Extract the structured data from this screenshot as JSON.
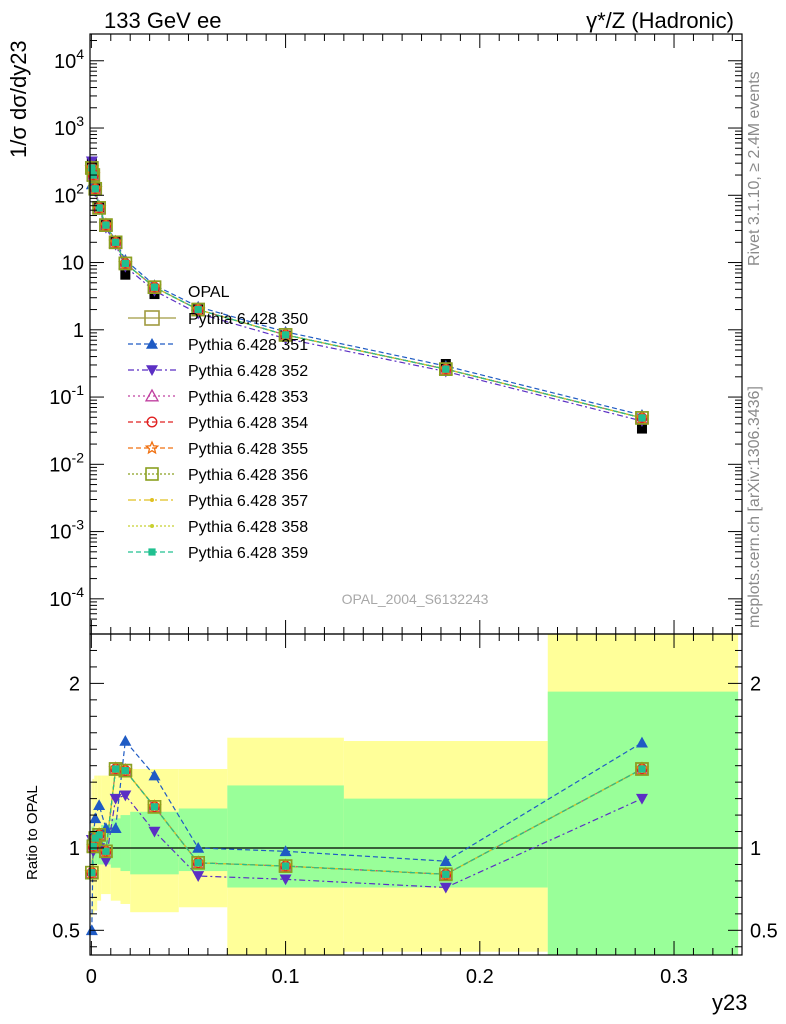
{
  "header": {
    "left": "133 GeV ee",
    "right": "γ*/Z (Hadronic)"
  },
  "side_text": {
    "rivet": "Rivet 3.1.10, ≥ 2.4M events",
    "source": "mcplots.cern.ch [arXiv:1306.3436]"
  },
  "watermark": "OPAL_2004_S6132243",
  "colors": {
    "data": "#000000",
    "band_inner": "#99ff99",
    "band_outer": "#ffff99",
    "s350": "#a09a40",
    "s351": "#1f5bc4",
    "s352": "#5b2fc4",
    "s353": "#c040a0",
    "s354": "#e02020",
    "s355": "#f07010",
    "s356": "#8aa020",
    "s357": "#e0c020",
    "s358": "#c8d030",
    "s359": "#20c090"
  },
  "chart_data": [
    {
      "type": "scatter",
      "title": "",
      "xlabel": "y23",
      "ylabel": "1/σ dσ/dy23",
      "ylog": true,
      "ylim": [
        3e-05,
        25000
      ],
      "xlim": [
        -0.0007,
        0.335
      ],
      "y_tick_labels": [
        "10^-4",
        "10^-3",
        "10^-2",
        "10^-1",
        "1",
        "10",
        "10^2",
        "10^3",
        "10^4"
      ],
      "x": [
        0.00025,
        0.001,
        0.002,
        0.004,
        0.0075,
        0.0125,
        0.0175,
        0.0325,
        0.055,
        0.1,
        0.1825,
        0.2835
      ],
      "data_name": "OPAL",
      "data": [
        300,
        220,
        130,
        66,
        36,
        21,
        6.6,
        3.4,
        2.0,
        0.82,
        0.31,
        0.034
      ],
      "series": [
        {
          "name": "Pythia 6.428 350",
          "key": "s350",
          "values": [
            255,
            200,
            125,
            65,
            36,
            20,
            9.7,
            4.3,
            2.0,
            0.84,
            0.26,
            0.049
          ]
        },
        {
          "name": "Pythia 6.428 351",
          "key": "s351",
          "values": [
            145,
            205,
            130,
            70,
            37,
            21,
            10.9,
            4.6,
            2.2,
            0.93,
            0.29,
            0.054
          ]
        },
        {
          "name": "Pythia 6.428 352",
          "key": "s352",
          "values": [
            320,
            210,
            115,
            62,
            33,
            18.5,
            8.7,
            3.8,
            1.75,
            0.74,
            0.24,
            0.044
          ]
        },
        {
          "name": "Pythia 6.428 353",
          "key": "s353",
          "values": [
            255,
            200,
            125,
            65,
            36,
            20,
            9.7,
            4.3,
            2.0,
            0.84,
            0.26,
            0.049
          ]
        },
        {
          "name": "Pythia 6.428 354",
          "key": "s354",
          "values": [
            255,
            200,
            125,
            65,
            36,
            20,
            9.7,
            4.3,
            2.0,
            0.84,
            0.26,
            0.049
          ]
        },
        {
          "name": "Pythia 6.428 355",
          "key": "s355",
          "values": [
            255,
            200,
            125,
            65,
            36,
            20,
            9.7,
            4.3,
            2.0,
            0.84,
            0.26,
            0.049
          ]
        },
        {
          "name": "Pythia 6.428 356",
          "key": "s356",
          "values": [
            255,
            200,
            125,
            65,
            36,
            20,
            9.7,
            4.3,
            2.0,
            0.84,
            0.26,
            0.049
          ]
        },
        {
          "name": "Pythia 6.428 357",
          "key": "s357",
          "values": [
            255,
            200,
            125,
            65,
            36,
            20,
            9.7,
            4.3,
            2.0,
            0.84,
            0.26,
            0.049
          ]
        },
        {
          "name": "Pythia 6.428 358",
          "key": "s358",
          "values": [
            255,
            200,
            125,
            65,
            36,
            20,
            9.7,
            4.3,
            2.0,
            0.84,
            0.26,
            0.049
          ]
        },
        {
          "name": "Pythia 6.428 359",
          "key": "s359",
          "values": [
            255,
            200,
            125,
            65,
            36,
            20,
            9.7,
            4.3,
            2.0,
            0.84,
            0.26,
            0.049
          ]
        }
      ]
    },
    {
      "type": "line",
      "title": "",
      "xlabel": "y23",
      "ylabel": "Ratio to OPAL",
      "ylim": [
        0.35,
        2.3
      ],
      "xlim": [
        -0.0007,
        0.335
      ],
      "y_ticks": [
        0.5,
        1,
        2
      ],
      "y_tick_labels": [
        "0.5",
        "1",
        "2"
      ],
      "x_ticks": [
        0,
        0.1,
        0.2,
        0.3
      ],
      "x_tick_labels": [
        "0",
        "0.1",
        "0.2",
        "0.3"
      ],
      "x": [
        0.00025,
        0.001,
        0.002,
        0.004,
        0.0075,
        0.0125,
        0.0175,
        0.0325,
        0.055,
        0.1,
        0.1825,
        0.2835
      ],
      "bands": [
        {
          "x0": 0.0,
          "x1": 0.0005,
          "inner": [
            0.88,
            1.13
          ],
          "outer": [
            0.55,
            1.4
          ]
        },
        {
          "x0": 0.0005,
          "x1": 0.0015,
          "inner": [
            0.88,
            1.13
          ],
          "outer": [
            0.6,
            1.42
          ]
        },
        {
          "x0": 0.0015,
          "x1": 0.003,
          "inner": [
            0.9,
            1.12
          ],
          "outer": [
            0.62,
            1.44
          ]
        },
        {
          "x0": 0.003,
          "x1": 0.005,
          "inner": [
            0.9,
            1.12
          ],
          "outer": [
            0.68,
            1.44
          ]
        },
        {
          "x0": 0.005,
          "x1": 0.01,
          "inner": [
            0.9,
            1.14
          ],
          "outer": [
            0.72,
            1.44
          ]
        },
        {
          "x0": 0.01,
          "x1": 0.015,
          "inner": [
            0.88,
            1.18
          ],
          "outer": [
            0.68,
            1.46
          ]
        },
        {
          "x0": 0.015,
          "x1": 0.02,
          "inner": [
            0.86,
            1.2
          ],
          "outer": [
            0.66,
            1.46
          ]
        },
        {
          "x0": 0.02,
          "x1": 0.045,
          "inner": [
            0.84,
            1.22
          ],
          "outer": [
            0.61,
            1.48
          ]
        },
        {
          "x0": 0.045,
          "x1": 0.07,
          "inner": [
            0.86,
            1.24
          ],
          "outer": [
            0.64,
            1.48
          ]
        },
        {
          "x0": 0.07,
          "x1": 0.13,
          "inner": [
            0.76,
            1.38
          ],
          "outer": [
            0.35,
            1.67
          ]
        },
        {
          "x0": 0.13,
          "x1": 0.235,
          "inner": [
            0.76,
            1.3
          ],
          "outer": [
            0.37,
            1.65
          ]
        },
        {
          "x0": 0.235,
          "x1": 0.333,
          "inner": [
            0.35,
            1.95
          ],
          "outer": [
            0.35,
            2.3
          ]
        }
      ],
      "series": [
        {
          "name": "Pythia 6.428 350",
          "key": "s350",
          "values": [
            0.85,
            1.01,
            1.06,
            1.08,
            0.98,
            1.48,
            1.47,
            1.25,
            0.91,
            0.89,
            0.84,
            1.48
          ]
        },
        {
          "name": "Pythia 6.428 351",
          "key": "s351",
          "values": [
            0.5,
            1.08,
            1.18,
            1.26,
            1.12,
            1.12,
            1.65,
            1.44,
            1.0,
            0.98,
            0.92,
            1.64
          ]
        },
        {
          "name": "Pythia 6.428 352",
          "key": "s352",
          "values": [
            1.05,
            0.98,
            1.02,
            1.0,
            0.92,
            1.3,
            1.32,
            1.1,
            0.83,
            0.81,
            0.76,
            1.3
          ]
        },
        {
          "name": "Pythia 6.428 353",
          "key": "s353",
          "values": [
            0.85,
            1.01,
            1.06,
            1.08,
            0.98,
            1.48,
            1.47,
            1.25,
            0.91,
            0.89,
            0.84,
            1.48
          ]
        },
        {
          "name": "Pythia 6.428 354",
          "key": "s354",
          "values": [
            0.85,
            1.01,
            1.06,
            1.08,
            0.98,
            1.48,
            1.47,
            1.25,
            0.91,
            0.89,
            0.84,
            1.48
          ]
        },
        {
          "name": "Pythia 6.428 355",
          "key": "s355",
          "values": [
            0.85,
            1.01,
            1.06,
            1.08,
            0.98,
            1.48,
            1.47,
            1.25,
            0.91,
            0.89,
            0.84,
            1.48
          ]
        },
        {
          "name": "Pythia 6.428 356",
          "key": "s356",
          "values": [
            0.85,
            1.01,
            1.06,
            1.08,
            0.98,
            1.48,
            1.47,
            1.25,
            0.91,
            0.89,
            0.84,
            1.48
          ]
        },
        {
          "name": "Pythia 6.428 357",
          "key": "s357",
          "values": [
            0.85,
            1.01,
            1.06,
            1.08,
            0.98,
            1.48,
            1.47,
            1.25,
            0.91,
            0.89,
            0.84,
            1.48
          ]
        },
        {
          "name": "Pythia 6.428 358",
          "key": "s358",
          "values": [
            0.85,
            1.01,
            1.06,
            1.08,
            0.98,
            1.48,
            1.47,
            1.25,
            0.91,
            0.89,
            0.84,
            1.48
          ]
        },
        {
          "name": "Pythia 6.428 359",
          "key": "s359",
          "values": [
            0.85,
            1.01,
            1.06,
            1.08,
            0.98,
            1.48,
            1.47,
            1.25,
            0.91,
            0.89,
            0.84,
            1.48
          ]
        }
      ]
    }
  ]
}
